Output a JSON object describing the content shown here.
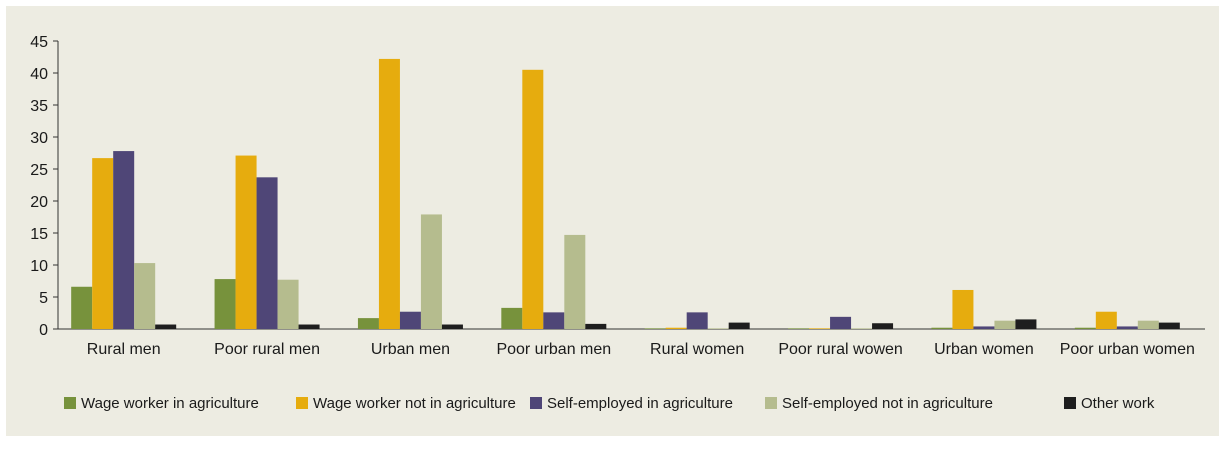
{
  "chart_data": {
    "type": "bar",
    "title": "",
    "xlabel": "",
    "ylabel": "",
    "ylim": [
      0,
      45
    ],
    "yticks": [
      0,
      5,
      10,
      15,
      20,
      25,
      30,
      35,
      40,
      45
    ],
    "grid": false,
    "legend_position": "bottom",
    "categories": [
      "Rural men",
      "Poor rural men",
      "Urban men",
      "Poor urban men",
      "Rural women",
      "Poor rural wowen",
      "Urban women",
      "Poor urban women"
    ],
    "series": [
      {
        "name": "Wage worker in agriculture",
        "color": "#77923c",
        "values": [
          6.6,
          7.8,
          1.7,
          3.3,
          0.1,
          0.1,
          0.2,
          0.2
        ]
      },
      {
        "name": "Wage worker not in agriculture",
        "color": "#e6ac0e",
        "values": [
          26.7,
          27.1,
          42.2,
          40.5,
          0.2,
          0.1,
          6.1,
          2.7
        ]
      },
      {
        "name": "Self-employed in agriculture",
        "color": "#4f4677",
        "values": [
          27.8,
          23.7,
          2.7,
          2.6,
          2.6,
          1.9,
          0.4,
          0.4
        ]
      },
      {
        "name": "Self-employed not in agriculture",
        "color": "#b5bc8e",
        "values": [
          10.3,
          7.7,
          17.9,
          14.7,
          0.1,
          0.1,
          1.3,
          1.3
        ]
      },
      {
        "name": "Other work",
        "color": "#1e1e1e",
        "values": [
          0.7,
          0.7,
          0.7,
          0.8,
          1.0,
          0.9,
          1.5,
          1.0
        ]
      }
    ]
  }
}
